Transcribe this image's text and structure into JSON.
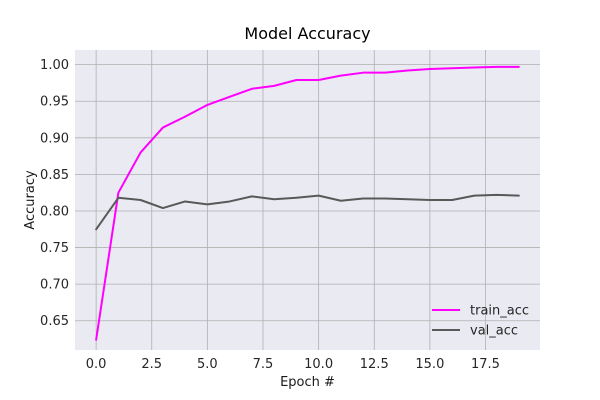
{
  "chart_data": {
    "type": "line",
    "title": "Model Accuracy",
    "xlabel": "Epoch #",
    "ylabel": "Accuracy",
    "xlim": [
      -0.95,
      19.95
    ],
    "ylim": [
      0.61,
      1.02
    ],
    "xticks": [
      0.0,
      2.5,
      5.0,
      7.5,
      10.0,
      12.5,
      15.0,
      17.5
    ],
    "xtick_labels": [
      "0.0",
      "2.5",
      "5.0",
      "7.5",
      "10.0",
      "12.5",
      "15.0",
      "17.5"
    ],
    "yticks": [
      0.65,
      0.7,
      0.75,
      0.8,
      0.85,
      0.9,
      0.95,
      1.0
    ],
    "ytick_labels": [
      "0.65",
      "0.70",
      "0.75",
      "0.80",
      "0.85",
      "0.90",
      "0.95",
      "1.00"
    ],
    "grid": true,
    "legend_position": "lower-right",
    "x": [
      0,
      1,
      2,
      3,
      4,
      5,
      6,
      7,
      8,
      9,
      10,
      11,
      12,
      13,
      14,
      15,
      16,
      17,
      18,
      19
    ],
    "series": [
      {
        "name": "train_acc",
        "color": "#ff00ff",
        "values": [
          0.624,
          0.825,
          0.88,
          0.914,
          0.929,
          0.945,
          0.956,
          0.967,
          0.971,
          0.979,
          0.979,
          0.985,
          0.989,
          0.989,
          0.992,
          0.994,
          0.995,
          0.996,
          0.997,
          0.997
        ]
      },
      {
        "name": "val_acc",
        "color": "#595959",
        "values": [
          0.775,
          0.818,
          0.815,
          0.804,
          0.813,
          0.809,
          0.813,
          0.82,
          0.816,
          0.818,
          0.821,
          0.814,
          0.817,
          0.817,
          0.816,
          0.815,
          0.815,
          0.821,
          0.822,
          0.821
        ]
      }
    ],
    "colors": {
      "plot_background": "#eaeaf2",
      "grid": "#b0b0b0",
      "spine": "#262626"
    }
  }
}
